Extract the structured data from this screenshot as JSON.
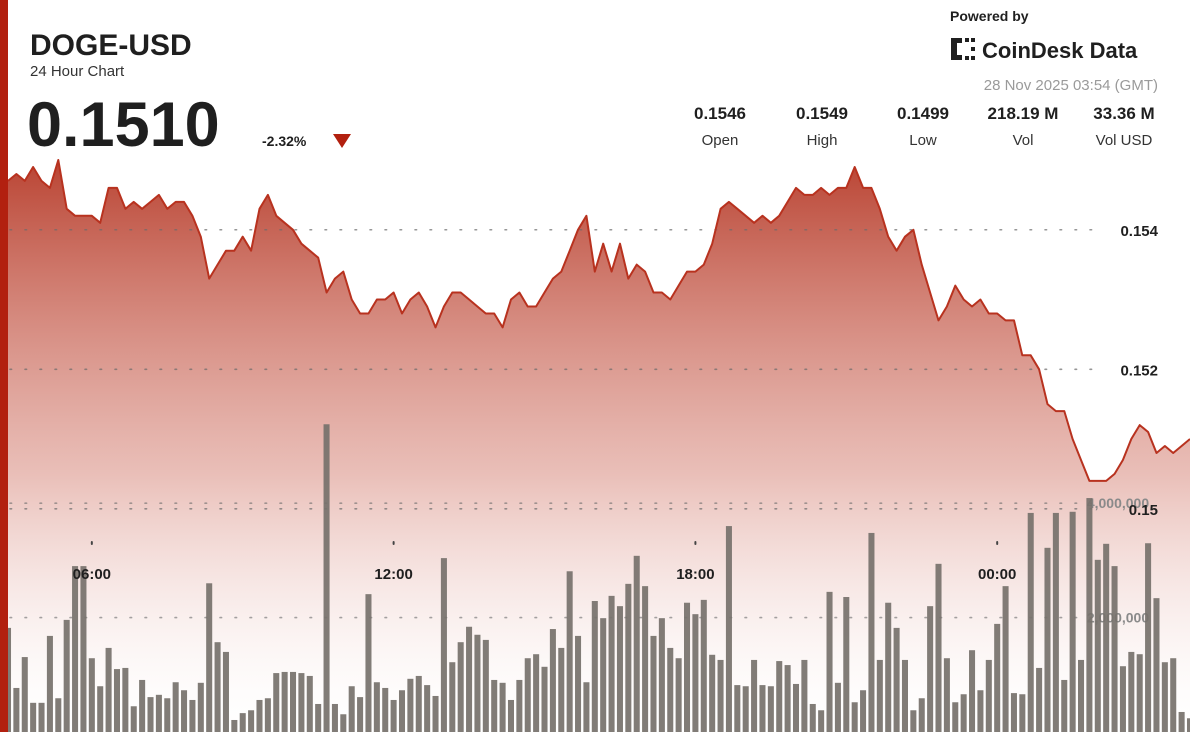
{
  "header": {
    "symbol": "DOGE-USD",
    "subtitle": "24 Hour Chart",
    "price": "0.1510",
    "change": "-2.32%"
  },
  "branding": {
    "powered_by": "Powered by",
    "logo": "CoinDesk Data",
    "timestamp": "28 Nov 2025 03:54 (GMT)"
  },
  "stats": [
    {
      "value": "0.1546",
      "label": "Open"
    },
    {
      "value": "0.1549",
      "label": "High"
    },
    {
      "value": "0.1499",
      "label": "Low"
    },
    {
      "value": "218.19 M",
      "label": "Vol"
    },
    {
      "value": "33.36 M",
      "label": "Vol USD"
    }
  ],
  "chart_data": {
    "type": "area",
    "x": [
      "04:20",
      "04:30",
      "04:40",
      "04:50",
      "05:00",
      "05:10",
      "05:20",
      "05:30",
      "05:40",
      "05:50",
      "06:00",
      "06:10",
      "06:20",
      "06:30",
      "06:40",
      "06:50",
      "07:00",
      "07:10",
      "07:20",
      "07:30",
      "07:40",
      "07:50",
      "08:00",
      "08:10",
      "08:20",
      "08:30",
      "08:40",
      "08:50",
      "09:00",
      "09:10",
      "09:20",
      "09:30",
      "09:40",
      "09:50",
      "10:00",
      "10:10",
      "10:20",
      "10:30",
      "10:40",
      "10:50",
      "11:00",
      "11:10",
      "11:20",
      "11:30",
      "11:40",
      "11:50",
      "12:00",
      "12:10",
      "12:20",
      "12:30",
      "12:40",
      "12:50",
      "13:00",
      "13:10",
      "13:20",
      "13:30",
      "13:40",
      "13:50",
      "14:00",
      "14:10",
      "14:20",
      "14:30",
      "14:40",
      "14:50",
      "15:00",
      "15:10",
      "15:20",
      "15:30",
      "15:40",
      "15:50",
      "16:00",
      "16:10",
      "16:20",
      "16:30",
      "16:40",
      "16:50",
      "17:00",
      "17:10",
      "17:20",
      "17:30",
      "17:40",
      "17:50",
      "18:00",
      "18:10",
      "18:20",
      "18:30",
      "18:40",
      "18:50",
      "19:00",
      "19:10",
      "19:20",
      "19:30",
      "19:40",
      "19:50",
      "20:00",
      "20:10",
      "20:20",
      "20:30",
      "20:40",
      "20:50",
      "21:00",
      "21:10",
      "21:20",
      "21:30",
      "21:40",
      "21:50",
      "22:00",
      "22:10",
      "22:20",
      "22:30",
      "22:40",
      "22:50",
      "23:00",
      "23:10",
      "23:20",
      "23:30",
      "23:40",
      "23:50",
      "00:00",
      "00:10",
      "00:20",
      "00:30",
      "00:40",
      "00:50",
      "01:00",
      "01:10",
      "01:20",
      "01:30",
      "01:40",
      "01:50",
      "02:00",
      "02:10",
      "02:20",
      "02:30",
      "02:40",
      "02:50",
      "03:00",
      "03:10",
      "03:20",
      "03:30",
      "03:40",
      "03:50"
    ],
    "series": [
      {
        "color": "#b8321f",
        "values": [
          0.1547,
          0.1548,
          0.1547,
          0.1549,
          0.1547,
          0.1546,
          0.155,
          0.1543,
          0.1542,
          0.1542,
          0.1542,
          0.1541,
          0.1546,
          0.1546,
          0.1543,
          0.1544,
          0.1543,
          0.1544,
          0.1545,
          0.1543,
          0.1544,
          0.1544,
          0.1542,
          0.1539,
          0.1533,
          0.1535,
          0.1537,
          0.1537,
          0.1539,
          0.1537,
          0.1543,
          0.1545,
          0.1542,
          0.1541,
          0.154,
          0.1538,
          0.1537,
          0.1536,
          0.1531,
          0.1533,
          0.1534,
          0.153,
          0.1528,
          0.1528,
          0.153,
          0.153,
          0.1531,
          0.1528,
          0.153,
          0.1531,
          0.1529,
          0.1526,
          0.1529,
          0.1531,
          0.1531,
          0.153,
          0.1529,
          0.1528,
          0.1528,
          0.1526,
          0.153,
          0.1531,
          0.1529,
          0.1529,
          0.1531,
          0.1533,
          0.1534,
          0.1537,
          0.154,
          0.1542,
          0.1534,
          0.1538,
          0.1534,
          0.1538,
          0.1533,
          0.1535,
          0.1534,
          0.1531,
          0.1531,
          0.153,
          0.1532,
          0.1534,
          0.1534,
          0.1535,
          0.1538,
          0.1543,
          0.1544,
          0.1543,
          0.1542,
          0.1541,
          0.1542,
          0.1541,
          0.1542,
          0.1544,
          0.1546,
          0.1545,
          0.1545,
          0.1546,
          0.1545,
          0.1546,
          0.1546,
          0.1549,
          0.1546,
          0.1546,
          0.1543,
          0.1539,
          0.1537,
          0.1539,
          0.154,
          0.1535,
          0.1531,
          0.1527,
          0.1529,
          0.1532,
          0.153,
          0.1529,
          0.153,
          0.1528,
          0.1528,
          0.1527,
          0.1527,
          0.1522,
          0.1522,
          0.152,
          0.1515,
          0.1514,
          0.1514,
          0.151,
          0.1507,
          0.1504,
          0.1504,
          0.1504,
          0.1505,
          0.1507,
          0.151,
          0.1512,
          0.1511,
          0.1508,
          0.1509,
          0.1508,
          0.1509,
          0.151
        ]
      },
      {
        "type": "bar",
        "axis": "y2",
        "color": "#76716b",
        "values": [
          1820000,
          770000,
          1310000,
          510000,
          510000,
          1680000,
          590000,
          1960000,
          2900000,
          2900000,
          1290000,
          800000,
          1470000,
          1100000,
          1120000,
          450000,
          910000,
          610000,
          650000,
          590000,
          870000,
          730000,
          560000,
          860000,
          2600000,
          1570000,
          1400000,
          210000,
          330000,
          380000,
          560000,
          590000,
          1030000,
          1050000,
          1050000,
          1030000,
          980000,
          490000,
          5380000,
          490000,
          310000,
          800000,
          610000,
          2410000,
          870000,
          770000,
          560000,
          730000,
          930000,
          980000,
          820000,
          630000,
          3040000,
          1220000,
          1570000,
          1840000,
          1700000,
          1610000,
          910000,
          860000,
          560000,
          910000,
          1290000,
          1360000,
          1140000,
          1800000,
          1470000,
          2810000,
          1680000,
          870000,
          2290000,
          1990000,
          2380000,
          2200000,
          2590000,
          3080000,
          2550000,
          1680000,
          1990000,
          1470000,
          1290000,
          2260000,
          2060000,
          2310000,
          1350000,
          1260000,
          3600000,
          820000,
          800000,
          1260000,
          820000,
          800000,
          1240000,
          1170000,
          840000,
          1260000,
          490000,
          380000,
          2450000,
          860000,
          2360000,
          520000,
          730000,
          3480000,
          1260000,
          2260000,
          1820000,
          1260000,
          380000,
          590000,
          2200000,
          2940000,
          1290000,
          520000,
          660000,
          1430000,
          730000,
          1260000,
          1890000,
          2550000,
          680000,
          660000,
          3830000,
          1120000,
          3220000,
          3830000,
          910000,
          3850000,
          1260000,
          4090000,
          3010000,
          3290000,
          2900000,
          1150000,
          1400000,
          1360000,
          3300000,
          2340000,
          1220000,
          1290000,
          350000,
          240000
        ]
      }
    ],
    "ylim": [
      0.1468,
      0.155
    ],
    "yticks": [
      0.154,
      0.152,
      0.15
    ],
    "y2lim": [
      0,
      10000000
    ],
    "y2ticks": [
      {
        "value": 2000000,
        "label": "2,000,000"
      },
      {
        "value": 4000000,
        "label": "4,000,000"
      }
    ],
    "xticks": [
      "06:00",
      "12:00",
      "18:00",
      "00:00"
    ],
    "grid": true
  }
}
